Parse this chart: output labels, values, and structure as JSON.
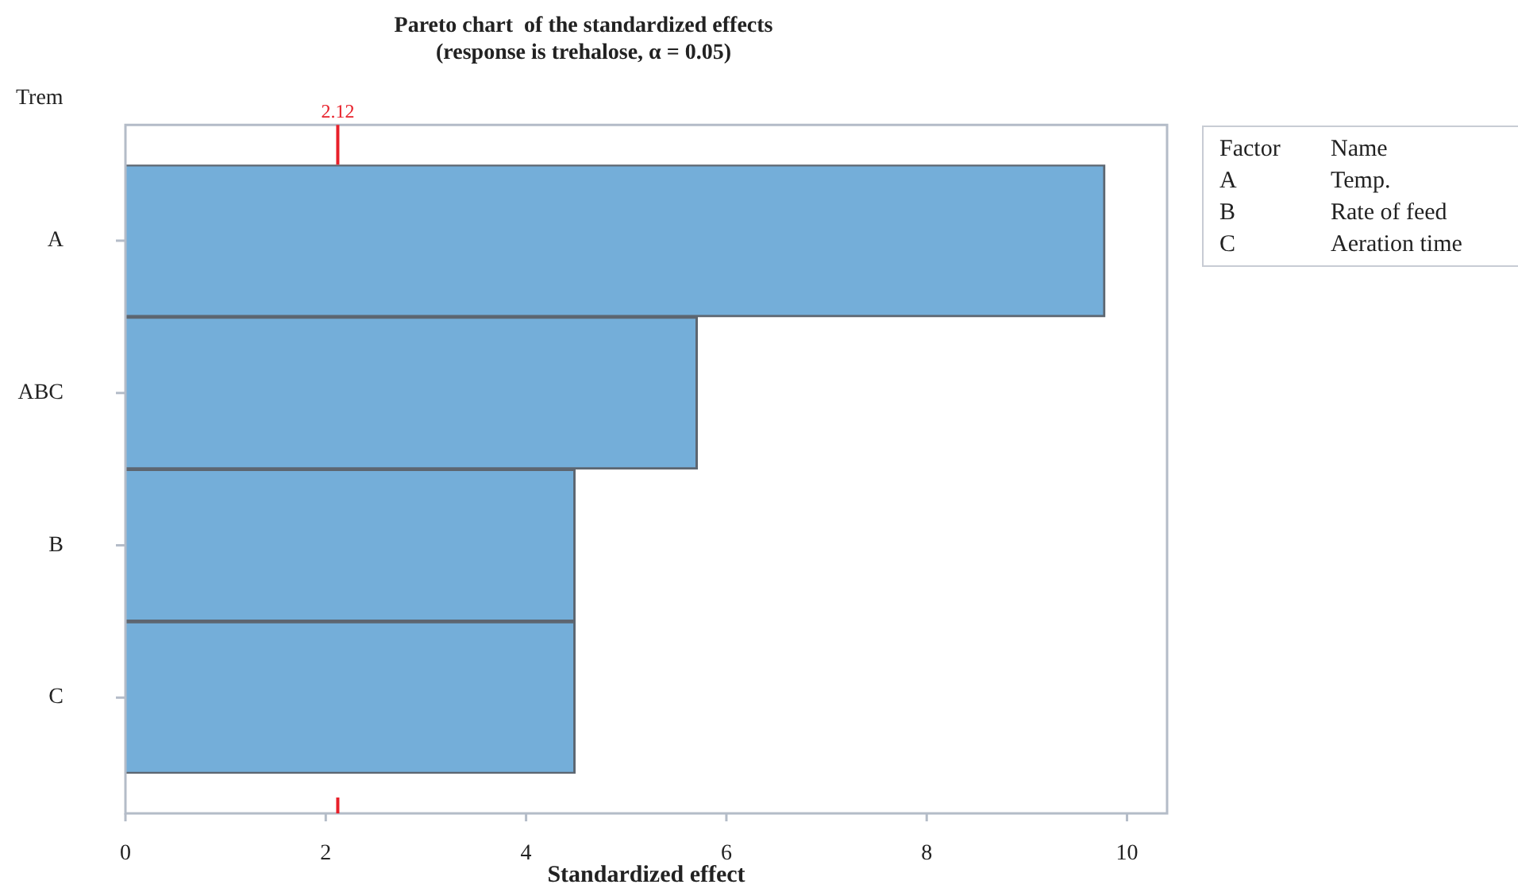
{
  "chart_data": {
    "type": "bar",
    "orientation": "horizontal",
    "title": "Pareto chart  of the standardized effects",
    "subtitle": "(response is trehalose, α = 0.05)",
    "xlabel": "Standardized effect",
    "ylabel": "Trem",
    "categories": [
      "A",
      "ABC",
      "B",
      "C"
    ],
    "values": [
      9.78,
      5.71,
      4.49,
      4.49
    ],
    "color": "#74aed9",
    "xlim": [
      0,
      10.4
    ],
    "xticks": [
      0,
      2,
      4,
      6,
      8,
      10
    ],
    "ref_lines": [
      {
        "axis": "x",
        "value": 2.12,
        "label": "2.12",
        "color": "#e8202a"
      }
    ],
    "annotations": [
      "Factor",
      "Name",
      "A",
      "Temp.",
      "B",
      "Rate of feed",
      "C",
      "Aeration time"
    ]
  }
}
